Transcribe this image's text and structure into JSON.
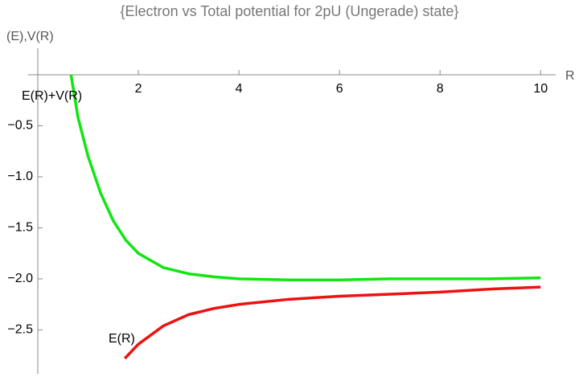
{
  "chart_data": {
    "type": "line",
    "title": "{Electron vs Total potential for 2pU (Ungerade) state}",
    "y_label": "(E),V(R)",
    "x_label": "R",
    "xlim": [
      -0.2,
      10.3
    ],
    "ylim": [
      -2.93,
      0.26
    ],
    "xticks": [
      2,
      4,
      6,
      8,
      10
    ],
    "yticks": [
      {
        "value": -0.5,
        "label": "−0.5"
      },
      {
        "value": -1.0,
        "label": "−1.0"
      },
      {
        "value": -1.5,
        "label": "−1.5"
      },
      {
        "value": -2.0,
        "label": "−2.0"
      },
      {
        "value": -2.5,
        "label": "−2.5"
      }
    ],
    "series": [
      {
        "name": "E(R)+V(R)",
        "color": "#11e611",
        "x": [
          0.66,
          0.8,
          1,
          1.25,
          1.5,
          1.75,
          2,
          2.5,
          3,
          3.5,
          4,
          5,
          6,
          7,
          8,
          9,
          10
        ],
        "values": [
          0,
          -0.42,
          -0.8,
          -1.16,
          -1.43,
          -1.62,
          -1.75,
          -1.89,
          -1.95,
          -1.98,
          -2.0,
          -2.01,
          -2.01,
          -2.0,
          -2.0,
          -2.0,
          -1.99
        ]
      },
      {
        "name": "E(R)",
        "color": "#ee1111",
        "x": [
          1.73,
          2,
          2.5,
          3,
          3.5,
          4,
          5,
          6,
          7,
          8,
          9,
          10
        ],
        "values": [
          -2.78,
          -2.64,
          -2.46,
          -2.35,
          -2.29,
          -2.25,
          -2.2,
          -2.17,
          -2.15,
          -2.13,
          -2.1,
          -2.08
        ]
      }
    ]
  }
}
